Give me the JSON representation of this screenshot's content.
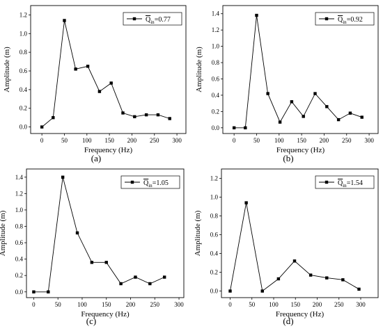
{
  "chart_data": [
    {
      "type": "line",
      "panel_label": "(a)",
      "xlabel": "Frequency (Hz)",
      "ylabel": "Amplitude (m)",
      "xlim": [
        -25,
        320
      ],
      "ylim": [
        -0.07,
        1.3
      ],
      "xticks": [
        0,
        50,
        100,
        150,
        200,
        250,
        300
      ],
      "yticks": [
        0.0,
        0.2,
        0.4,
        0.6,
        0.8,
        1.0,
        1.2
      ],
      "legend_position": "top-right",
      "series": [
        {
          "name": "Q̄in=0.77",
          "legend_symbol": "Q",
          "legend_sub": "in",
          "legend_value": "=0.77",
          "x": [
            0,
            25,
            50,
            75,
            102,
            128,
            154,
            180,
            206,
            232,
            258,
            284
          ],
          "y": [
            0.0,
            0.1,
            1.14,
            0.62,
            0.65,
            0.38,
            0.47,
            0.15,
            0.11,
            0.13,
            0.13,
            0.09
          ]
        }
      ]
    },
    {
      "type": "line",
      "panel_label": "(b)",
      "xlabel": "Frequency (Hz)",
      "ylabel": "Amplitude (m)",
      "xlim": [
        -25,
        320
      ],
      "ylim": [
        -0.07,
        1.5
      ],
      "xticks": [
        0,
        50,
        100,
        150,
        200,
        250,
        300
      ],
      "yticks": [
        0.0,
        0.2,
        0.4,
        0.6,
        0.8,
        1.0,
        1.2,
        1.4
      ],
      "legend_position": "top-right",
      "series": [
        {
          "name": "Q̄in=0.92",
          "legend_symbol": "Q",
          "legend_sub": "in",
          "legend_value": "=0.92",
          "x": [
            0,
            25,
            50,
            75,
            102,
            128,
            154,
            180,
            206,
            232,
            258,
            284
          ],
          "y": [
            0.0,
            0.0,
            1.38,
            0.42,
            0.07,
            0.32,
            0.14,
            0.42,
            0.26,
            0.1,
            0.18,
            0.13
          ]
        }
      ]
    },
    {
      "type": "line",
      "panel_label": "(c)",
      "xlabel": "Frequency (Hz)",
      "ylabel": "Amplitude (m)",
      "xlim": [
        -15,
        310
      ],
      "ylim": [
        -0.07,
        1.5
      ],
      "xticks": [
        0,
        50,
        100,
        150,
        200,
        250,
        300
      ],
      "yticks": [
        0.0,
        0.2,
        0.4,
        0.6,
        0.8,
        1.0,
        1.2,
        1.4
      ],
      "legend_position": "top-right",
      "series": [
        {
          "name": "Q̄in=1.05",
          "legend_symbol": "Q",
          "legend_sub": "in",
          "legend_value": "=1.05",
          "x": [
            0,
            30,
            60,
            90,
            120,
            150,
            180,
            210,
            240,
            270
          ],
          "y": [
            0.0,
            0.0,
            1.4,
            0.72,
            0.36,
            0.36,
            0.1,
            0.18,
            0.1,
            0.18
          ]
        }
      ]
    },
    {
      "type": "line",
      "panel_label": "(d)",
      "xlabel": "Frequency (Hz)",
      "ylabel": "Amplitude (m)",
      "xlim": [
        -20,
        340
      ],
      "ylim": [
        -0.07,
        1.3
      ],
      "xticks": [
        0,
        50,
        100,
        150,
        200,
        250,
        300
      ],
      "yticks": [
        0.0,
        0.2,
        0.4,
        0.6,
        0.8,
        1.0,
        1.2
      ],
      "legend_position": "top-right",
      "series": [
        {
          "name": "Q̄in=1.54",
          "legend_symbol": "Q",
          "legend_sub": "in",
          "legend_value": "=1.54",
          "x": [
            0,
            37,
            74,
            111,
            148,
            185,
            222,
            259,
            296
          ],
          "y": [
            0.0,
            0.94,
            0.0,
            0.13,
            0.32,
            0.17,
            0.14,
            0.12,
            0.02
          ]
        }
      ]
    }
  ]
}
